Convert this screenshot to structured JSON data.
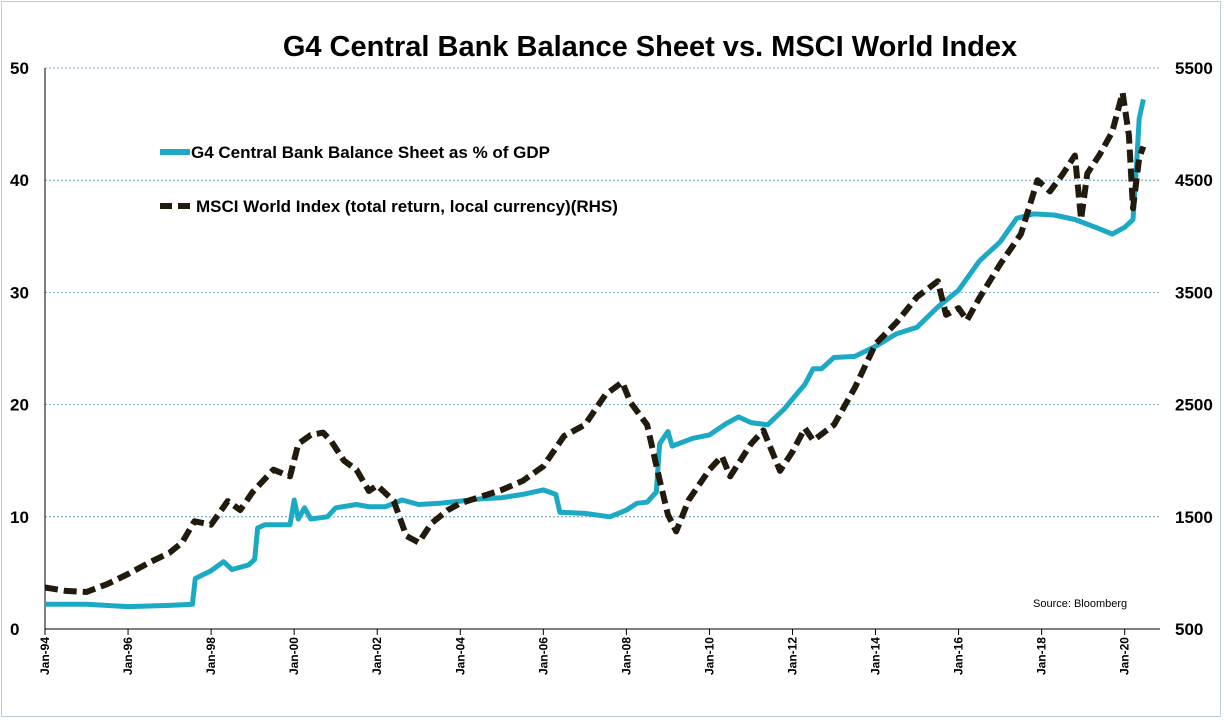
{
  "chart_data": {
    "type": "line",
    "title": "G4 Central Bank Balance Sheet vs. MSCI World Index",
    "source": "Source: Bloomberg",
    "x_ticks": [
      "Jan-94",
      "Jan-96",
      "Jan-98",
      "Jan-00",
      "Jan-02",
      "Jan-04",
      "Jan-06",
      "Jan-08",
      "Jan-10",
      "Jan-12",
      "Jan-14",
      "Jan-16",
      "Jan-18",
      "Jan-20"
    ],
    "x_range": [
      1994.0,
      2020.85
    ],
    "y_left": {
      "ticks": [
        "0",
        "10",
        "20",
        "30",
        "40",
        "50"
      ],
      "range": [
        0,
        50
      ]
    },
    "y_right": {
      "ticks": [
        "500",
        "1500",
        "2500",
        "3500",
        "4500",
        "5500"
      ],
      "range": [
        500,
        5500
      ]
    },
    "grid": "horizontal dashed",
    "legend_position": "upper-left",
    "colors": {
      "balance_sheet": "#1BA9C4",
      "msci": "#231A0E",
      "grid": "#4A8FB0"
    },
    "series": [
      {
        "name": "G4 Central Bank Balance Sheet as % of GDP",
        "axis": "left",
        "style": "solid",
        "points": [
          [
            1994.0,
            2.2
          ],
          [
            1995.0,
            2.2
          ],
          [
            1996.0,
            2.0
          ],
          [
            1997.0,
            2.1
          ],
          [
            1997.55,
            2.2
          ],
          [
            1997.62,
            4.5
          ],
          [
            1998.0,
            5.2
          ],
          [
            1998.3,
            6.0
          ],
          [
            1998.5,
            5.3
          ],
          [
            1998.9,
            5.7
          ],
          [
            1999.05,
            6.2
          ],
          [
            1999.12,
            9.0
          ],
          [
            1999.3,
            9.3
          ],
          [
            1999.9,
            9.3
          ],
          [
            2000.0,
            11.5
          ],
          [
            2000.1,
            9.8
          ],
          [
            2000.25,
            10.8
          ],
          [
            2000.4,
            9.8
          ],
          [
            2000.8,
            10.0
          ],
          [
            2001.0,
            10.8
          ],
          [
            2001.5,
            11.1
          ],
          [
            2001.8,
            10.9
          ],
          [
            2002.2,
            10.9
          ],
          [
            2002.6,
            11.5
          ],
          [
            2003.0,
            11.1
          ],
          [
            2003.5,
            11.2
          ],
          [
            2004.0,
            11.4
          ],
          [
            2004.5,
            11.6
          ],
          [
            2005.0,
            11.7
          ],
          [
            2005.5,
            12.0
          ],
          [
            2006.0,
            12.4
          ],
          [
            2006.3,
            12.0
          ],
          [
            2006.4,
            10.4
          ],
          [
            2007.0,
            10.3
          ],
          [
            2007.6,
            10.0
          ],
          [
            2008.0,
            10.6
          ],
          [
            2008.25,
            11.2
          ],
          [
            2008.5,
            11.3
          ],
          [
            2008.72,
            12.2
          ],
          [
            2008.8,
            16.5
          ],
          [
            2009.0,
            17.6
          ],
          [
            2009.1,
            16.3
          ],
          [
            2009.6,
            17.0
          ],
          [
            2010.0,
            17.3
          ],
          [
            2010.4,
            18.3
          ],
          [
            2010.7,
            18.9
          ],
          [
            2011.0,
            18.4
          ],
          [
            2011.4,
            18.2
          ],
          [
            2011.8,
            19.6
          ],
          [
            2012.0,
            20.5
          ],
          [
            2012.3,
            21.8
          ],
          [
            2012.5,
            23.2
          ],
          [
            2012.7,
            23.2
          ],
          [
            2013.0,
            24.2
          ],
          [
            2013.5,
            24.3
          ],
          [
            2014.0,
            25.2
          ],
          [
            2014.5,
            26.3
          ],
          [
            2015.0,
            26.9
          ],
          [
            2015.5,
            28.7
          ],
          [
            2016.0,
            30.2
          ],
          [
            2016.5,
            32.8
          ],
          [
            2017.0,
            34.5
          ],
          [
            2017.4,
            36.6
          ],
          [
            2017.8,
            37.0
          ],
          [
            2018.3,
            36.9
          ],
          [
            2018.8,
            36.5
          ],
          [
            2019.3,
            35.8
          ],
          [
            2019.7,
            35.2
          ],
          [
            2020.0,
            35.8
          ],
          [
            2020.2,
            36.5
          ],
          [
            2020.28,
            41.0
          ],
          [
            2020.35,
            45.5
          ],
          [
            2020.45,
            47.2
          ]
        ]
      },
      {
        "name": "MSCI World Index (total return, local currency)(RHS)",
        "axis": "right",
        "style": "dashed",
        "points": [
          [
            1994.0,
            870
          ],
          [
            1994.5,
            840
          ],
          [
            1995.0,
            830
          ],
          [
            1995.5,
            900
          ],
          [
            1996.0,
            990
          ],
          [
            1996.5,
            1090
          ],
          [
            1997.0,
            1180
          ],
          [
            1997.3,
            1270
          ],
          [
            1997.6,
            1460
          ],
          [
            1998.0,
            1430
          ],
          [
            1998.4,
            1640
          ],
          [
            1998.7,
            1560
          ],
          [
            1999.0,
            1720
          ],
          [
            1999.5,
            1920
          ],
          [
            1999.9,
            1860
          ],
          [
            2000.1,
            2150
          ],
          [
            2000.4,
            2230
          ],
          [
            2000.7,
            2250
          ],
          [
            2000.9,
            2170
          ],
          [
            2001.2,
            2000
          ],
          [
            2001.5,
            1920
          ],
          [
            2001.8,
            1730
          ],
          [
            2002.0,
            1780
          ],
          [
            2002.4,
            1640
          ],
          [
            2002.7,
            1330
          ],
          [
            2003.0,
            1270
          ],
          [
            2003.3,
            1440
          ],
          [
            2003.7,
            1560
          ],
          [
            2004.0,
            1620
          ],
          [
            2004.5,
            1680
          ],
          [
            2005.0,
            1740
          ],
          [
            2005.5,
            1820
          ],
          [
            2006.0,
            1950
          ],
          [
            2006.5,
            2220
          ],
          [
            2007.0,
            2320
          ],
          [
            2007.5,
            2590
          ],
          [
            2007.9,
            2700
          ],
          [
            2008.1,
            2520
          ],
          [
            2008.5,
            2320
          ],
          [
            2008.8,
            1830
          ],
          [
            2009.0,
            1520
          ],
          [
            2009.2,
            1370
          ],
          [
            2009.5,
            1650
          ],
          [
            2010.0,
            1920
          ],
          [
            2010.3,
            2040
          ],
          [
            2010.5,
            1860
          ],
          [
            2011.0,
            2150
          ],
          [
            2011.3,
            2270
          ],
          [
            2011.7,
            1910
          ],
          [
            2012.0,
            2080
          ],
          [
            2012.3,
            2290
          ],
          [
            2012.5,
            2180
          ],
          [
            2013.0,
            2320
          ],
          [
            2013.5,
            2650
          ],
          [
            2014.0,
            3040
          ],
          [
            2014.5,
            3230
          ],
          [
            2015.0,
            3460
          ],
          [
            2015.5,
            3600
          ],
          [
            2015.7,
            3300
          ],
          [
            2016.0,
            3360
          ],
          [
            2016.2,
            3250
          ],
          [
            2016.5,
            3450
          ],
          [
            2017.0,
            3750
          ],
          [
            2017.5,
            4020
          ],
          [
            2017.9,
            4500
          ],
          [
            2018.2,
            4400
          ],
          [
            2018.5,
            4550
          ],
          [
            2018.8,
            4720
          ],
          [
            2018.95,
            4150
          ],
          [
            2019.1,
            4560
          ],
          [
            2019.4,
            4730
          ],
          [
            2019.7,
            4930
          ],
          [
            2019.95,
            5280
          ],
          [
            2020.1,
            4900
          ],
          [
            2020.2,
            4250
          ],
          [
            2020.35,
            4700
          ],
          [
            2020.45,
            4800
          ]
        ]
      }
    ]
  }
}
